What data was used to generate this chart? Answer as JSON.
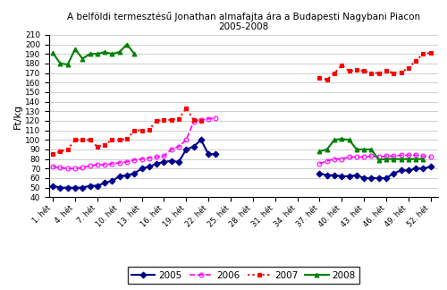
{
  "title_line1": "A belföldi termesztésű Jonathan almafajta ára a Budapesti Nagybani Piacon",
  "title_line2": "2005-2008",
  "ylabel": "Ft/kg",
  "ylim": [
    40,
    210
  ],
  "yticks": [
    40,
    50,
    60,
    70,
    80,
    90,
    100,
    110,
    120,
    130,
    140,
    150,
    160,
    170,
    180,
    190,
    200,
    210
  ],
  "xtick_labels": [
    "1. hét",
    "4. hét",
    "7. hét",
    "10. hét",
    "13. hét",
    "16. hét",
    "19. hét",
    "22. hét",
    "25. hét",
    "28. hét",
    "31. hét",
    "34. hét",
    "37. hét",
    "40. hét",
    "43. hét",
    "46. hét",
    "49. hét",
    "52. hét"
  ],
  "xtick_positions": [
    1,
    4,
    7,
    10,
    13,
    16,
    19,
    22,
    25,
    28,
    31,
    34,
    37,
    40,
    43,
    46,
    49,
    52
  ],
  "series_2005": {
    "segments": [
      {
        "x": [
          1,
          2,
          3,
          4,
          5,
          6,
          7,
          8,
          9,
          10,
          11,
          12,
          13,
          14,
          15,
          16,
          17,
          18,
          19,
          20,
          21,
          22,
          23
        ],
        "y": [
          52,
          50,
          50,
          50,
          50,
          52,
          52,
          55,
          57,
          62,
          63,
          65,
          70,
          72,
          75,
          77,
          78,
          77,
          90,
          93,
          100,
          85,
          85
        ]
      },
      {
        "x": [
          37,
          38,
          39,
          40,
          41,
          42,
          43,
          44,
          45,
          46,
          47,
          48,
          49,
          50,
          51,
          52
        ],
        "y": [
          65,
          63,
          63,
          62,
          62,
          63,
          60,
          60,
          60,
          60,
          65,
          68,
          68,
          70,
          70,
          72
        ]
      }
    ],
    "color": "#00008B",
    "marker": "D",
    "linestyle": "-",
    "linewidth": 1.5,
    "markersize": 3.5,
    "fillstyle": "full"
  },
  "series_2006": {
    "segments": [
      {
        "x": [
          1,
          2,
          3,
          4,
          5,
          6,
          7,
          8,
          9,
          10,
          11,
          12,
          13,
          14,
          15,
          16,
          17,
          18,
          19,
          20,
          21,
          22,
          23
        ],
        "y": [
          72,
          71,
          70,
          70,
          71,
          73,
          74,
          74,
          75,
          76,
          77,
          79,
          80,
          81,
          82,
          83,
          90,
          93,
          100,
          119,
          121,
          122,
          123
        ]
      },
      {
        "x": [
          37,
          38,
          39,
          40,
          41,
          42,
          43,
          44,
          45,
          46,
          47,
          48,
          49,
          50,
          51,
          52
        ],
        "y": [
          75,
          78,
          80,
          80,
          82,
          82,
          82,
          83,
          82,
          83,
          83,
          84,
          84,
          84,
          83,
          82
        ]
      }
    ],
    "color": "#FF00FF",
    "marker": "o",
    "linestyle": "--",
    "linewidth": 1.2,
    "markersize": 3.5,
    "fillstyle": "none"
  },
  "series_2007": {
    "segments": [
      {
        "x": [
          1,
          2,
          3,
          4,
          5,
          6,
          7,
          8,
          9,
          10,
          11,
          12,
          13,
          14,
          15,
          16,
          17,
          18,
          19,
          20,
          21
        ],
        "y": [
          85,
          88,
          90,
          100,
          100,
          100,
          93,
          95,
          100,
          100,
          101,
          110,
          110,
          111,
          120,
          121,
          121,
          122,
          133,
          121,
          120
        ]
      },
      {
        "x": [
          37,
          38,
          39,
          40,
          41,
          42,
          43,
          44,
          45,
          46,
          47,
          48,
          49,
          50,
          51,
          52
        ],
        "y": [
          165,
          163,
          170,
          178,
          172,
          173,
          172,
          170,
          170,
          172,
          170,
          171,
          175,
          183,
          190,
          191
        ]
      }
    ],
    "color": "#FF0000",
    "marker": "s",
    "linestyle": ":",
    "linewidth": 1.5,
    "markersize": 3.5,
    "fillstyle": "full"
  },
  "series_2008": {
    "segments": [
      {
        "x": [
          1,
          2,
          3,
          4,
          5,
          6,
          7,
          8,
          9,
          10,
          11,
          12
        ],
        "y": [
          191,
          180,
          179,
          195,
          185,
          190,
          190,
          192,
          190,
          192,
          200,
          190
        ]
      },
      {
        "x": [
          37,
          38,
          39,
          40,
          41,
          42,
          43,
          44,
          45,
          46,
          47,
          48,
          49,
          50,
          51
        ],
        "y": [
          88,
          90,
          100,
          101,
          100,
          90,
          90,
          90,
          79,
          80,
          80,
          80,
          80,
          80,
          80
        ]
      }
    ],
    "color": "#008000",
    "marker": "^",
    "linestyle": "-",
    "linewidth": 1.5,
    "markersize": 3.5,
    "fillstyle": "full"
  },
  "background_color": "#ffffff",
  "grid_color": "#bbbbbb"
}
